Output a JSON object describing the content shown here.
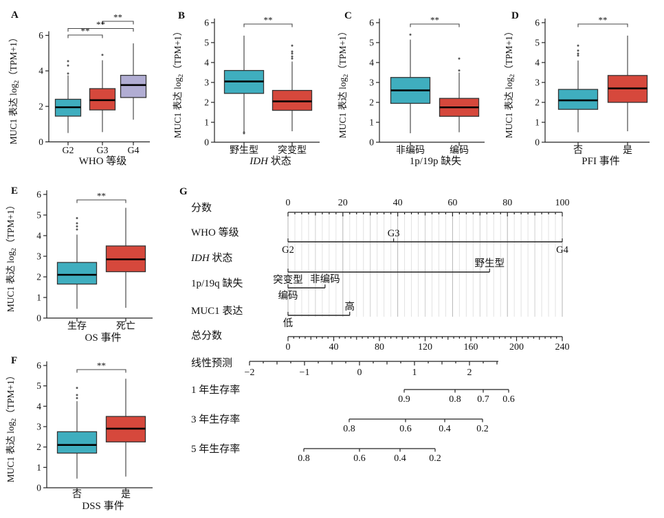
{
  "figure_title": "MUC1 expression box plots and nomogram",
  "colors": {
    "teal": "#3FAEBF",
    "red": "#D6483C",
    "purple": "#B1ADD3",
    "box_border": "#333333",
    "median": "#000000",
    "whisker": "#4a4a4a",
    "outlier": "#5a5a5a",
    "axis": "#222222",
    "grid_light": "#e2e2e2",
    "grid_mid": "#cfcfcf",
    "grid_dark": "#b5b5b5",
    "bracket": "#444444"
  },
  "ylabel_segs": [
    {
      "t": "MUC1 表达 log"
    },
    {
      "t": "2",
      "sub": true
    },
    {
      "t": "（TPM+1）"
    }
  ],
  "chart_data": [
    {
      "type": "box",
      "panel": "A",
      "xlabel_segs": [
        {
          "t": "WHO 等级"
        }
      ],
      "ylim": [
        0,
        6
      ],
      "yticks": [
        0,
        2,
        4,
        6
      ],
      "groups": [
        {
          "name": "G2",
          "color": "teal",
          "whisker_low": 0.5,
          "q1": 1.45,
          "median": 1.95,
          "q3": 2.4,
          "whisker_high": 3.75,
          "outliers": [
            3.85,
            4.3,
            4.55
          ]
        },
        {
          "name": "G3",
          "color": "red",
          "whisker_low": 0.55,
          "q1": 1.8,
          "median": 2.35,
          "q3": 3.0,
          "whisker_high": 4.6,
          "outliers": [
            4.9
          ]
        },
        {
          "name": "G4",
          "color": "purple",
          "whisker_low": 1.25,
          "q1": 2.5,
          "median": 3.2,
          "q3": 3.75,
          "whisker_high": 5.55,
          "outliers": []
        }
      ],
      "significance": [
        {
          "groups": [
            "G3",
            "G4"
          ],
          "label": "**"
        },
        {
          "groups": [
            "G2",
            "G4"
          ],
          "label": "**"
        },
        {
          "groups": [
            "G2",
            "G3"
          ],
          "label": "**"
        }
      ]
    },
    {
      "type": "box",
      "panel": "B",
      "xlabel_segs": [
        {
          "t": "IDH",
          "italic": true
        },
        {
          "t": " 状态"
        }
      ],
      "ylim": [
        0,
        6
      ],
      "yticks": [
        0,
        1,
        2,
        3,
        4,
        5,
        6
      ],
      "groups": [
        {
          "name": "野生型",
          "color": "teal",
          "whisker_low": 0.55,
          "q1": 2.45,
          "median": 3.05,
          "q3": 3.6,
          "whisker_high": 5.35,
          "outliers": [
            0.5,
            0.45
          ]
        },
        {
          "name": "突变型",
          "color": "red",
          "whisker_low": 0.55,
          "q1": 1.6,
          "median": 2.05,
          "q3": 2.6,
          "whisker_high": 4.05,
          "outliers": [
            4.2,
            4.3,
            4.45,
            4.55,
            4.85
          ]
        }
      ],
      "significance": [
        {
          "groups": [
            "野生型",
            "突变型"
          ],
          "label": "**"
        }
      ]
    },
    {
      "type": "box",
      "panel": "C",
      "xlabel_segs": [
        {
          "t": "1p/19p 缺失"
        }
      ],
      "ylim": [
        0,
        6
      ],
      "yticks": [
        0,
        1,
        2,
        3,
        4,
        5,
        6
      ],
      "groups": [
        {
          "name": "非编码",
          "color": "teal",
          "whisker_low": 0.45,
          "q1": 1.95,
          "median": 2.6,
          "q3": 3.25,
          "whisker_high": 5.15,
          "outliers": [
            5.4
          ]
        },
        {
          "name": "编码",
          "color": "red",
          "whisker_low": 0.5,
          "q1": 1.3,
          "median": 1.75,
          "q3": 2.2,
          "whisker_high": 3.5,
          "outliers": [
            3.6,
            4.2
          ]
        }
      ],
      "significance": [
        {
          "groups": [
            "非编码",
            "编码"
          ],
          "label": "**"
        }
      ]
    },
    {
      "type": "box",
      "panel": "D",
      "xlabel_segs": [
        {
          "t": "PFI 事件"
        }
      ],
      "ylim": [
        0,
        6
      ],
      "yticks": [
        0,
        1,
        2,
        3,
        4,
        5,
        6
      ],
      "groups": [
        {
          "name": "否",
          "color": "teal",
          "whisker_low": 0.5,
          "q1": 1.65,
          "median": 2.1,
          "q3": 2.65,
          "whisker_high": 4.1,
          "outliers": [
            4.35,
            4.45,
            4.6,
            4.85
          ]
        },
        {
          "name": "是",
          "color": "red",
          "whisker_low": 0.55,
          "q1": 2.0,
          "median": 2.7,
          "q3": 3.35,
          "whisker_high": 5.35,
          "outliers": []
        }
      ],
      "significance": [
        {
          "groups": [
            "否",
            "是"
          ],
          "label": "**"
        }
      ]
    },
    {
      "type": "box",
      "panel": "E",
      "xlabel_segs": [
        {
          "t": "OS 事件"
        }
      ],
      "ylim": [
        0,
        6
      ],
      "yticks": [
        0,
        1,
        2,
        3,
        4,
        5,
        6
      ],
      "groups": [
        {
          "name": "生存",
          "color": "teal",
          "whisker_low": 0.45,
          "q1": 1.65,
          "median": 2.1,
          "q3": 2.7,
          "whisker_high": 4.05,
          "outliers": [
            4.3,
            4.45,
            4.6,
            4.85
          ]
        },
        {
          "name": "死亡",
          "color": "red",
          "whisker_low": 0.5,
          "q1": 2.25,
          "median": 2.85,
          "q3": 3.5,
          "whisker_high": 5.35,
          "outliers": []
        }
      ],
      "significance": [
        {
          "groups": [
            "生存",
            "死亡"
          ],
          "label": "**"
        }
      ]
    },
    {
      "type": "box",
      "panel": "F",
      "xlabel_segs": [
        {
          "t": "DSS 事件"
        }
      ],
      "ylim": [
        0,
        6
      ],
      "yticks": [
        0,
        1,
        2,
        3,
        4,
        5,
        6
      ],
      "groups": [
        {
          "name": "否",
          "color": "teal",
          "whisker_low": 0.45,
          "q1": 1.7,
          "median": 2.1,
          "q3": 2.75,
          "whisker_high": 4.25,
          "outliers": [
            4.4,
            4.55,
            4.9
          ]
        },
        {
          "name": "是",
          "color": "red",
          "whisker_low": 0.55,
          "q1": 2.25,
          "median": 2.9,
          "q3": 3.5,
          "whisker_high": 5.35,
          "outliers": []
        }
      ],
      "significance": [
        {
          "groups": [
            "否",
            "是"
          ],
          "label": "**"
        }
      ]
    },
    {
      "type": "nomogram",
      "panel": "G",
      "points_axis": {
        "label_segs": [
          {
            "t": "分数"
          }
        ],
        "range": [
          0,
          100
        ],
        "ticks": [
          0,
          20,
          40,
          60,
          80,
          100
        ],
        "minor_step": 2.5
      },
      "predictor_rows": [
        {
          "label_segs": [
            {
              "t": "WHO 等级"
            }
          ],
          "items": [
            {
              "name": "G2",
              "points": 0,
              "pos": "below"
            },
            {
              "name": "G3",
              "points": 38.5,
              "pos": "above"
            },
            {
              "name": "G4",
              "points": 100,
              "pos": "below"
            }
          ]
        },
        {
          "label_segs": [
            {
              "t": "IDH",
              "italic": true
            },
            {
              "t": " 状态"
            }
          ],
          "items": [
            {
              "name": "突变型",
              "points": 0,
              "pos": "below"
            },
            {
              "name": "野生型",
              "points": 73.5,
              "pos": "above"
            }
          ]
        },
        {
          "label_segs": [
            {
              "t": "1p/19q 缺失"
            }
          ],
          "items": [
            {
              "name": "编码",
              "points": 0,
              "pos": "below"
            },
            {
              "name": "非编码",
              "points": 13.5,
              "pos": "above"
            }
          ]
        },
        {
          "label_segs": [
            {
              "t": "MUC1 表达"
            }
          ],
          "items": [
            {
              "name": "低",
              "points": 0,
              "pos": "below"
            },
            {
              "name": "高",
              "points": 22.5,
              "pos": "above"
            }
          ]
        }
      ],
      "total_axis": {
        "label_segs": [
          {
            "t": "总分数"
          }
        ],
        "range": [
          0,
          240
        ],
        "ticks": [
          0,
          40,
          80,
          120,
          160,
          200,
          240
        ],
        "minor_step": 5
      },
      "linear_axis": {
        "label_segs": [
          {
            "t": "线性预测"
          }
        ],
        "range": [
          -2,
          2.5
        ],
        "ticks": [
          -2,
          -1,
          0,
          1,
          2
        ],
        "minor_step": 0.25
      },
      "survival_axes": [
        {
          "label_segs": [
            {
              "t": "1 年生存率"
            }
          ],
          "tick_labels": [
            "0.9",
            "0.8",
            "0.7",
            "0.6"
          ]
        },
        {
          "label_segs": [
            {
              "t": "3 年生存率"
            }
          ],
          "tick_labels": [
            "0.8",
            "0.6",
            "0.4",
            "0.2"
          ]
        },
        {
          "label_segs": [
            {
              "t": "5 年生存率"
            }
          ],
          "tick_labels": [
            "0.8",
            "0.6",
            "0.4",
            "0.2"
          ]
        }
      ]
    }
  ]
}
